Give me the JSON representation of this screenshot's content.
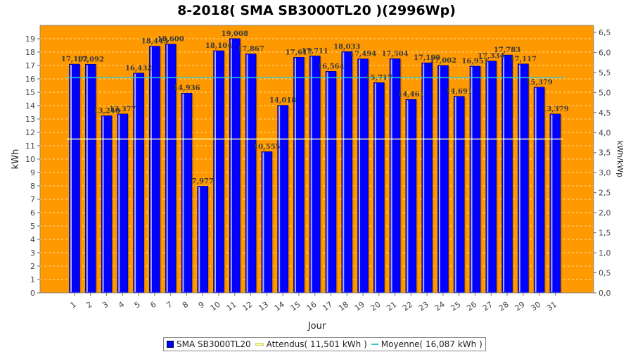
{
  "colors": {
    "bar": "#0000ff",
    "bar_edge": "#000055",
    "plot_bg": "#ff9900",
    "expected_line": "#ffff99",
    "average_line": "#33cccc",
    "grid": "#ffe0a0"
  },
  "legend": {
    "bar_label": "SMA SB3000TL20",
    "expected_label": "Attendus( 11,501 kWh )",
    "average_label": "Moyenne( 16,087 kWh )"
  },
  "chart_data": {
    "type": "bar",
    "title": "8-2018( SMA SB3000TL20 )(2996Wp)",
    "xlabel": "Jour",
    "ylabel": "kWh",
    "y2label": "kWh/kWp",
    "ylim": [
      0,
      20
    ],
    "y2lim": [
      0,
      6.675
    ],
    "yticks": [
      "0",
      "1",
      "2",
      "3",
      "4",
      "5",
      "6",
      "7",
      "8",
      "9",
      "10",
      "11",
      "12",
      "13",
      "14",
      "15",
      "16",
      "17",
      "18",
      "19"
    ],
    "y2ticks": [
      "0,0",
      "0,5",
      "1,0",
      "1,5",
      "2,0",
      "2,5",
      "3,0",
      "3,5",
      "4,0",
      "4,5",
      "5,0",
      "5,5",
      "6,0",
      "6,5"
    ],
    "categories": [
      "1",
      "2",
      "3",
      "4",
      "5",
      "6",
      "7",
      "8",
      "9",
      "10",
      "11",
      "12",
      "13",
      "14",
      "15",
      "16",
      "17",
      "18",
      "19",
      "20",
      "21",
      "22",
      "23",
      "24",
      "25",
      "26",
      "27",
      "28",
      "29",
      "30",
      "31"
    ],
    "values": [
      17.102,
      17.092,
      13.24,
      13.377,
      16.432,
      18.443,
      18.6,
      14.936,
      7.977,
      18.104,
      19.008,
      17.867,
      10.555,
      14.018,
      17.617,
      17.711,
      16.564,
      18.033,
      17.494,
      15.717,
      17.504,
      14.461,
      17.199,
      17.002,
      14.691,
      16.951,
      17.334,
      17.783,
      17.117,
      15.379,
      13.379
    ],
    "data_labels": [
      "17,102",
      "17,092",
      "13,240",
      "13,377",
      "16,432",
      "18,443",
      "18,600",
      "14,936",
      "7,977",
      "18,104",
      "19,008",
      "17,867",
      "10,555",
      "14,018",
      "17,617",
      "17,711",
      "16,564",
      "18,033",
      "17,494",
      "15,717",
      "17,504",
      "14,461",
      "17,199",
      "17,002",
      "14,691",
      "16,951",
      "17,334",
      "17,783",
      "17,117",
      "15,379",
      "13,379"
    ],
    "expected": 11.501,
    "average": 16.087,
    "grid": true,
    "legend_position": "bottom"
  }
}
